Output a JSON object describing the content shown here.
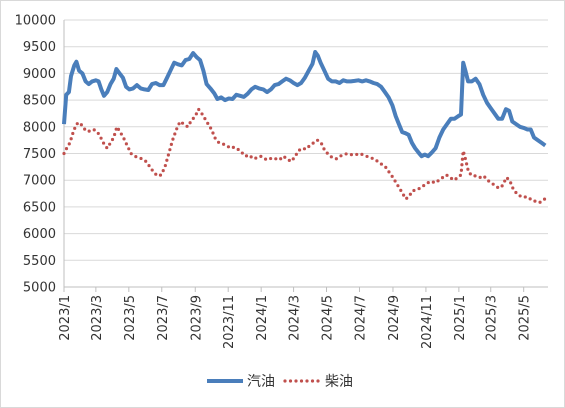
{
  "chart_data": {
    "type": "line",
    "title": "",
    "xlabel": "",
    "ylabel": "",
    "ylim": [
      5000,
      10000
    ],
    "y_ticks": [
      5000,
      5500,
      6000,
      6500,
      7000,
      7500,
      8000,
      8500,
      9000,
      9500,
      10000
    ],
    "x_range": [
      "2023-01-01",
      "2025-06-15"
    ],
    "x_tick_labels": [
      "2023/1",
      "2023/3",
      "2023/5",
      "2023/7",
      "2023/9",
      "2023/11",
      "2024/1",
      "2024/3",
      "2024/5",
      "2024/7",
      "2024/9",
      "2024/11",
      "2025/1",
      "2025/3",
      "2025/5"
    ],
    "x_tick_dates": [
      "2023-01-01",
      "2023-03-01",
      "2023-05-01",
      "2023-07-01",
      "2023-09-01",
      "2023-11-01",
      "2024-01-01",
      "2024-03-01",
      "2024-05-01",
      "2024-07-01",
      "2024-09-01",
      "2024-11-01",
      "2025-01-01",
      "2025-03-01",
      "2025-05-01"
    ],
    "grid": "horizontal",
    "legend_position": "bottom",
    "series": [
      {
        "name": "汽油",
        "color": "#4a7ebb",
        "style": "solid",
        "points": [
          [
            "2023-01-01",
            8050
          ],
          [
            "2023-01-05",
            8600
          ],
          [
            "2023-01-10",
            8650
          ],
          [
            "2023-01-14",
            8950
          ],
          [
            "2023-01-20",
            9150
          ],
          [
            "2023-01-24",
            9220
          ],
          [
            "2023-01-29",
            9050
          ],
          [
            "2023-02-04",
            9000
          ],
          [
            "2023-02-10",
            8850
          ],
          [
            "2023-02-16",
            8800
          ],
          [
            "2023-02-22",
            8850
          ],
          [
            "2023-03-01",
            8870
          ],
          [
            "2023-03-06",
            8850
          ],
          [
            "2023-03-11",
            8700
          ],
          [
            "2023-03-16",
            8580
          ],
          [
            "2023-03-22",
            8650
          ],
          [
            "2023-03-28",
            8800
          ],
          [
            "2023-04-03",
            8900
          ],
          [
            "2023-04-08",
            9080
          ],
          [
            "2023-04-14",
            9000
          ],
          [
            "2023-04-20",
            8920
          ],
          [
            "2023-04-26",
            8750
          ],
          [
            "2023-05-02",
            8700
          ],
          [
            "2023-05-09",
            8720
          ],
          [
            "2023-05-16",
            8780
          ],
          [
            "2023-05-23",
            8720
          ],
          [
            "2023-05-30",
            8700
          ],
          [
            "2023-06-06",
            8690
          ],
          [
            "2023-06-13",
            8800
          ],
          [
            "2023-06-20",
            8820
          ],
          [
            "2023-06-27",
            8780
          ],
          [
            "2023-07-04",
            8780
          ],
          [
            "2023-07-10",
            8900
          ],
          [
            "2023-07-17",
            9050
          ],
          [
            "2023-07-24",
            9200
          ],
          [
            "2023-07-31",
            9170
          ],
          [
            "2023-08-07",
            9150
          ],
          [
            "2023-08-14",
            9250
          ],
          [
            "2023-08-21",
            9270
          ],
          [
            "2023-08-28",
            9380
          ],
          [
            "2023-09-04",
            9300
          ],
          [
            "2023-09-10",
            9250
          ],
          [
            "2023-09-16",
            9050
          ],
          [
            "2023-09-22",
            8800
          ],
          [
            "2023-09-29",
            8720
          ],
          [
            "2023-10-06",
            8630
          ],
          [
            "2023-10-12",
            8520
          ],
          [
            "2023-10-19",
            8550
          ],
          [
            "2023-10-26",
            8500
          ],
          [
            "2023-11-02",
            8530
          ],
          [
            "2023-11-09",
            8520
          ],
          [
            "2023-11-16",
            8600
          ],
          [
            "2023-11-23",
            8580
          ],
          [
            "2023-11-30",
            8560
          ],
          [
            "2023-12-07",
            8620
          ],
          [
            "2023-12-14",
            8700
          ],
          [
            "2023-12-21",
            8750
          ],
          [
            "2023-12-28",
            8720
          ],
          [
            "2024-01-05",
            8700
          ],
          [
            "2024-01-12",
            8650
          ],
          [
            "2024-01-19",
            8700
          ],
          [
            "2024-01-26",
            8780
          ],
          [
            "2024-02-02",
            8800
          ],
          [
            "2024-02-09",
            8850
          ],
          [
            "2024-02-16",
            8900
          ],
          [
            "2024-02-23",
            8870
          ],
          [
            "2024-03-01",
            8820
          ],
          [
            "2024-03-08",
            8780
          ],
          [
            "2024-03-15",
            8820
          ],
          [
            "2024-03-22",
            8920
          ],
          [
            "2024-03-29",
            9050
          ],
          [
            "2024-04-05",
            9180
          ],
          [
            "2024-04-10",
            9400
          ],
          [
            "2024-04-15",
            9330
          ],
          [
            "2024-04-20",
            9200
          ],
          [
            "2024-04-27",
            9050
          ],
          [
            "2024-05-04",
            8900
          ],
          [
            "2024-05-11",
            8850
          ],
          [
            "2024-05-18",
            8850
          ],
          [
            "2024-05-25",
            8820
          ],
          [
            "2024-06-01",
            8870
          ],
          [
            "2024-06-08",
            8850
          ],
          [
            "2024-06-15",
            8850
          ],
          [
            "2024-06-22",
            8860
          ],
          [
            "2024-06-29",
            8870
          ],
          [
            "2024-07-06",
            8850
          ],
          [
            "2024-07-13",
            8870
          ],
          [
            "2024-07-20",
            8850
          ],
          [
            "2024-07-27",
            8820
          ],
          [
            "2024-08-03",
            8800
          ],
          [
            "2024-08-10",
            8750
          ],
          [
            "2024-08-17",
            8650
          ],
          [
            "2024-08-24",
            8550
          ],
          [
            "2024-08-31",
            8400
          ],
          [
            "2024-09-06",
            8200
          ],
          [
            "2024-09-12",
            8050
          ],
          [
            "2024-09-18",
            7900
          ],
          [
            "2024-09-24",
            7880
          ],
          [
            "2024-09-30",
            7850
          ],
          [
            "2024-10-06",
            7700
          ],
          [
            "2024-10-12",
            7600
          ],
          [
            "2024-10-18",
            7520
          ],
          [
            "2024-10-24",
            7450
          ],
          [
            "2024-10-30",
            7480
          ],
          [
            "2024-11-05",
            7450
          ],
          [
            "2024-11-12",
            7520
          ],
          [
            "2024-11-19",
            7600
          ],
          [
            "2024-11-26",
            7800
          ],
          [
            "2024-12-03",
            7950
          ],
          [
            "2024-12-10",
            8050
          ],
          [
            "2024-12-17",
            8150
          ],
          [
            "2024-12-24",
            8150
          ],
          [
            "2024-12-31",
            8200
          ],
          [
            "2025-01-05",
            8230
          ],
          [
            "2025-01-09",
            9200
          ],
          [
            "2025-01-13",
            9050
          ],
          [
            "2025-01-18",
            8850
          ],
          [
            "2025-01-25",
            8850
          ],
          [
            "2025-02-01",
            8900
          ],
          [
            "2025-02-08",
            8800
          ],
          [
            "2025-02-15",
            8600
          ],
          [
            "2025-02-22",
            8450
          ],
          [
            "2025-03-01",
            8350
          ],
          [
            "2025-03-08",
            8250
          ],
          [
            "2025-03-15",
            8150
          ],
          [
            "2025-03-22",
            8150
          ],
          [
            "2025-03-29",
            8330
          ],
          [
            "2025-04-04",
            8300
          ],
          [
            "2025-04-10",
            8100
          ],
          [
            "2025-04-17",
            8050
          ],
          [
            "2025-04-24",
            8000
          ],
          [
            "2025-05-01",
            7980
          ],
          [
            "2025-05-08",
            7950
          ],
          [
            "2025-05-14",
            7950
          ],
          [
            "2025-05-20",
            7800
          ],
          [
            "2025-05-27",
            7750
          ],
          [
            "2025-06-03",
            7700
          ],
          [
            "2025-06-10",
            7650
          ]
        ]
      },
      {
        "name": "柴油",
        "color": "#c0504d",
        "style": "dotted",
        "points": [
          [
            "2023-01-01",
            7500
          ],
          [
            "2023-01-06",
            7600
          ],
          [
            "2023-01-12",
            7700
          ],
          [
            "2023-01-18",
            7900
          ],
          [
            "2023-01-24",
            8050
          ],
          [
            "2023-01-30",
            8080
          ],
          [
            "2023-02-05",
            8000
          ],
          [
            "2023-02-11",
            7920
          ],
          [
            "2023-02-18",
            7920
          ],
          [
            "2023-02-25",
            7950
          ],
          [
            "2023-03-04",
            7900
          ],
          [
            "2023-03-10",
            7800
          ],
          [
            "2023-03-16",
            7680
          ],
          [
            "2023-03-22",
            7600
          ],
          [
            "2023-03-28",
            7700
          ],
          [
            "2023-04-03",
            7800
          ],
          [
            "2023-04-09",
            8000
          ],
          [
            "2023-04-15",
            7900
          ],
          [
            "2023-04-21",
            7800
          ],
          [
            "2023-04-28",
            7650
          ],
          [
            "2023-05-05",
            7500
          ],
          [
            "2023-05-12",
            7450
          ],
          [
            "2023-05-19",
            7420
          ],
          [
            "2023-05-26",
            7400
          ],
          [
            "2023-06-02",
            7350
          ],
          [
            "2023-06-09",
            7250
          ],
          [
            "2023-06-16",
            7150
          ],
          [
            "2023-06-23",
            7080
          ],
          [
            "2023-06-30",
            7100
          ],
          [
            "2023-07-07",
            7250
          ],
          [
            "2023-07-14",
            7500
          ],
          [
            "2023-07-21",
            7750
          ],
          [
            "2023-07-28",
            7950
          ],
          [
            "2023-08-04",
            8100
          ],
          [
            "2023-08-11",
            8050
          ],
          [
            "2023-08-18",
            8000
          ],
          [
            "2023-08-25",
            8120
          ],
          [
            "2023-09-01",
            8200
          ],
          [
            "2023-09-07",
            8330
          ],
          [
            "2023-09-13",
            8250
          ],
          [
            "2023-09-19",
            8150
          ],
          [
            "2023-09-25",
            8050
          ],
          [
            "2023-10-01",
            7950
          ],
          [
            "2023-10-08",
            7780
          ],
          [
            "2023-10-15",
            7700
          ],
          [
            "2023-10-22",
            7680
          ],
          [
            "2023-10-29",
            7650
          ],
          [
            "2023-11-05",
            7600
          ],
          [
            "2023-11-12",
            7620
          ],
          [
            "2023-11-19",
            7580
          ],
          [
            "2023-11-26",
            7520
          ],
          [
            "2023-12-03",
            7450
          ],
          [
            "2023-12-10",
            7470
          ],
          [
            "2023-12-17",
            7400
          ],
          [
            "2023-12-24",
            7420
          ],
          [
            "2023-12-31",
            7450
          ],
          [
            "2024-01-07",
            7400
          ],
          [
            "2024-01-14",
            7380
          ],
          [
            "2024-01-21",
            7420
          ],
          [
            "2024-01-28",
            7400
          ],
          [
            "2024-02-04",
            7380
          ],
          [
            "2024-02-11",
            7450
          ],
          [
            "2024-02-18",
            7400
          ],
          [
            "2024-02-25",
            7350
          ],
          [
            "2024-03-03",
            7430
          ],
          [
            "2024-03-10",
            7550
          ],
          [
            "2024-03-17",
            7600
          ],
          [
            "2024-03-24",
            7580
          ],
          [
            "2024-03-31",
            7650
          ],
          [
            "2024-04-07",
            7700
          ],
          [
            "2024-04-14",
            7750
          ],
          [
            "2024-04-21",
            7700
          ],
          [
            "2024-04-28",
            7550
          ],
          [
            "2024-05-05",
            7480
          ],
          [
            "2024-05-12",
            7420
          ],
          [
            "2024-05-19",
            7400
          ],
          [
            "2024-05-26",
            7450
          ],
          [
            "2024-06-02",
            7480
          ],
          [
            "2024-06-09",
            7500
          ],
          [
            "2024-06-16",
            7480
          ],
          [
            "2024-06-23",
            7470
          ],
          [
            "2024-06-30",
            7500
          ],
          [
            "2024-07-07",
            7480
          ],
          [
            "2024-07-14",
            7450
          ],
          [
            "2024-07-21",
            7420
          ],
          [
            "2024-07-28",
            7400
          ],
          [
            "2024-08-04",
            7350
          ],
          [
            "2024-08-11",
            7300
          ],
          [
            "2024-08-18",
            7250
          ],
          [
            "2024-08-25",
            7150
          ],
          [
            "2024-09-01",
            7050
          ],
          [
            "2024-09-07",
            6950
          ],
          [
            "2024-09-13",
            6850
          ],
          [
            "2024-09-19",
            6750
          ],
          [
            "2024-09-25",
            6650
          ],
          [
            "2024-10-01",
            6700
          ],
          [
            "2024-10-07",
            6800
          ],
          [
            "2024-10-14",
            6820
          ],
          [
            "2024-10-21",
            6850
          ],
          [
            "2024-10-28",
            6900
          ],
          [
            "2024-11-04",
            6950
          ],
          [
            "2024-11-11",
            6980
          ],
          [
            "2024-11-18",
            6950
          ],
          [
            "2024-11-25",
            7000
          ],
          [
            "2024-12-02",
            7050
          ],
          [
            "2024-12-09",
            7100
          ],
          [
            "2024-12-16",
            7050
          ],
          [
            "2024-12-23",
            7000
          ],
          [
            "2024-12-30",
            7050
          ],
          [
            "2025-01-05",
            7100
          ],
          [
            "2025-01-09",
            7550
          ],
          [
            "2025-01-13",
            7400
          ],
          [
            "2025-01-19",
            7150
          ],
          [
            "2025-01-26",
            7080
          ],
          [
            "2025-02-02",
            7080
          ],
          [
            "2025-02-09",
            7050
          ],
          [
            "2025-02-16",
            7080
          ],
          [
            "2025-02-23",
            7000
          ],
          [
            "2025-03-02",
            6950
          ],
          [
            "2025-03-09",
            6900
          ],
          [
            "2025-03-16",
            6850
          ],
          [
            "2025-03-23",
            6900
          ],
          [
            "2025-03-30",
            7050
          ],
          [
            "2025-04-05",
            7000
          ],
          [
            "2025-04-11",
            6850
          ],
          [
            "2025-04-18",
            6750
          ],
          [
            "2025-04-25",
            6700
          ],
          [
            "2025-05-02",
            6700
          ],
          [
            "2025-05-09",
            6650
          ],
          [
            "2025-05-16",
            6650
          ],
          [
            "2025-05-23",
            6600
          ],
          [
            "2025-05-30",
            6580
          ],
          [
            "2025-06-06",
            6620
          ],
          [
            "2025-06-12",
            6680
          ]
        ]
      }
    ]
  }
}
